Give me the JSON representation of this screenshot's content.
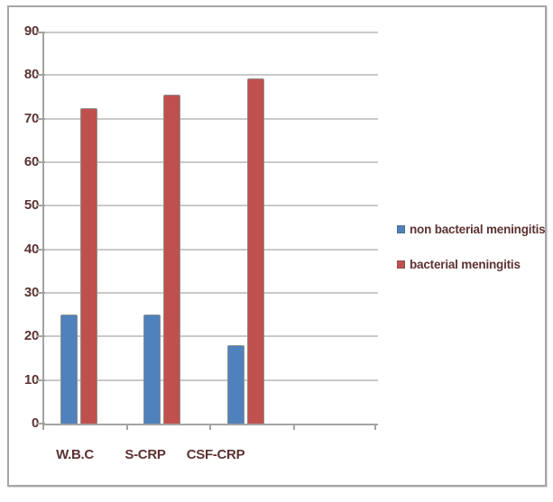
{
  "window": {
    "background_color": "#ffffff",
    "frame_border_color": "#a6a6a6"
  },
  "chart_data": {
    "type": "bar",
    "title": "",
    "xlabel": "",
    "ylabel": "",
    "categories": [
      "W.B.C",
      "S-CRP",
      "CSF-CRP"
    ],
    "series": [
      {
        "name": "non bacterial meningitis",
        "color": "#4f81bd",
        "values": [
          25,
          25,
          18
        ]
      },
      {
        "name": "bacterial meningitis",
        "color": "#c0504d",
        "values": [
          72.5,
          75.5,
          79.3
        ]
      }
    ],
    "ylim": [
      0,
      90
    ],
    "y_ticks": [
      0,
      10,
      20,
      30,
      40,
      50,
      60,
      70,
      80,
      90
    ],
    "grid": true,
    "legend_position": "right",
    "category_slots": 4,
    "text_color": "#5c3232",
    "gridline_color": "#c9c9c9",
    "axis_color": "#a3a3a3"
  }
}
